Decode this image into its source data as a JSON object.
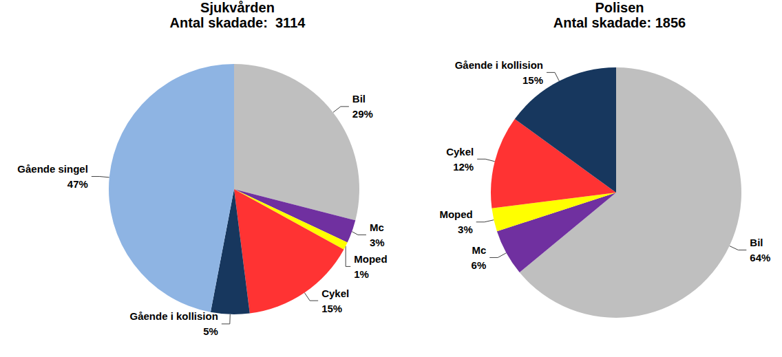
{
  "chart_data": [
    {
      "type": "pie",
      "title": "Sjukvården",
      "subtitle": "Antal skadade:  3114",
      "categories": [
        "Bil",
        "Mc",
        "Moped",
        "Cykel",
        "Gående i kollision",
        "Gående singel"
      ],
      "values": [
        29,
        3,
        1,
        15,
        5,
        47
      ],
      "value_labels": [
        "29%",
        "3%",
        "1%",
        "15%",
        "5%",
        "47%"
      ],
      "colors": [
        "#bfbfbf",
        "#7030a0",
        "#ffff00",
        "#ff3333",
        "#17375e",
        "#8eb4e3"
      ],
      "data_labels": true
    },
    {
      "type": "pie",
      "title": "Polisen",
      "subtitle": "Antal skadade: 1856",
      "categories": [
        "Bil",
        "Mc",
        "Moped",
        "Cykel",
        "Gående i kollision"
      ],
      "values": [
        64,
        6,
        3,
        12,
        15
      ],
      "value_labels": [
        "64%",
        "6%",
        "3%",
        "12%",
        "15%"
      ],
      "colors": [
        "#bfbfbf",
        "#7030a0",
        "#ffff00",
        "#ff3333",
        "#17375e"
      ],
      "data_labels": true
    }
  ]
}
